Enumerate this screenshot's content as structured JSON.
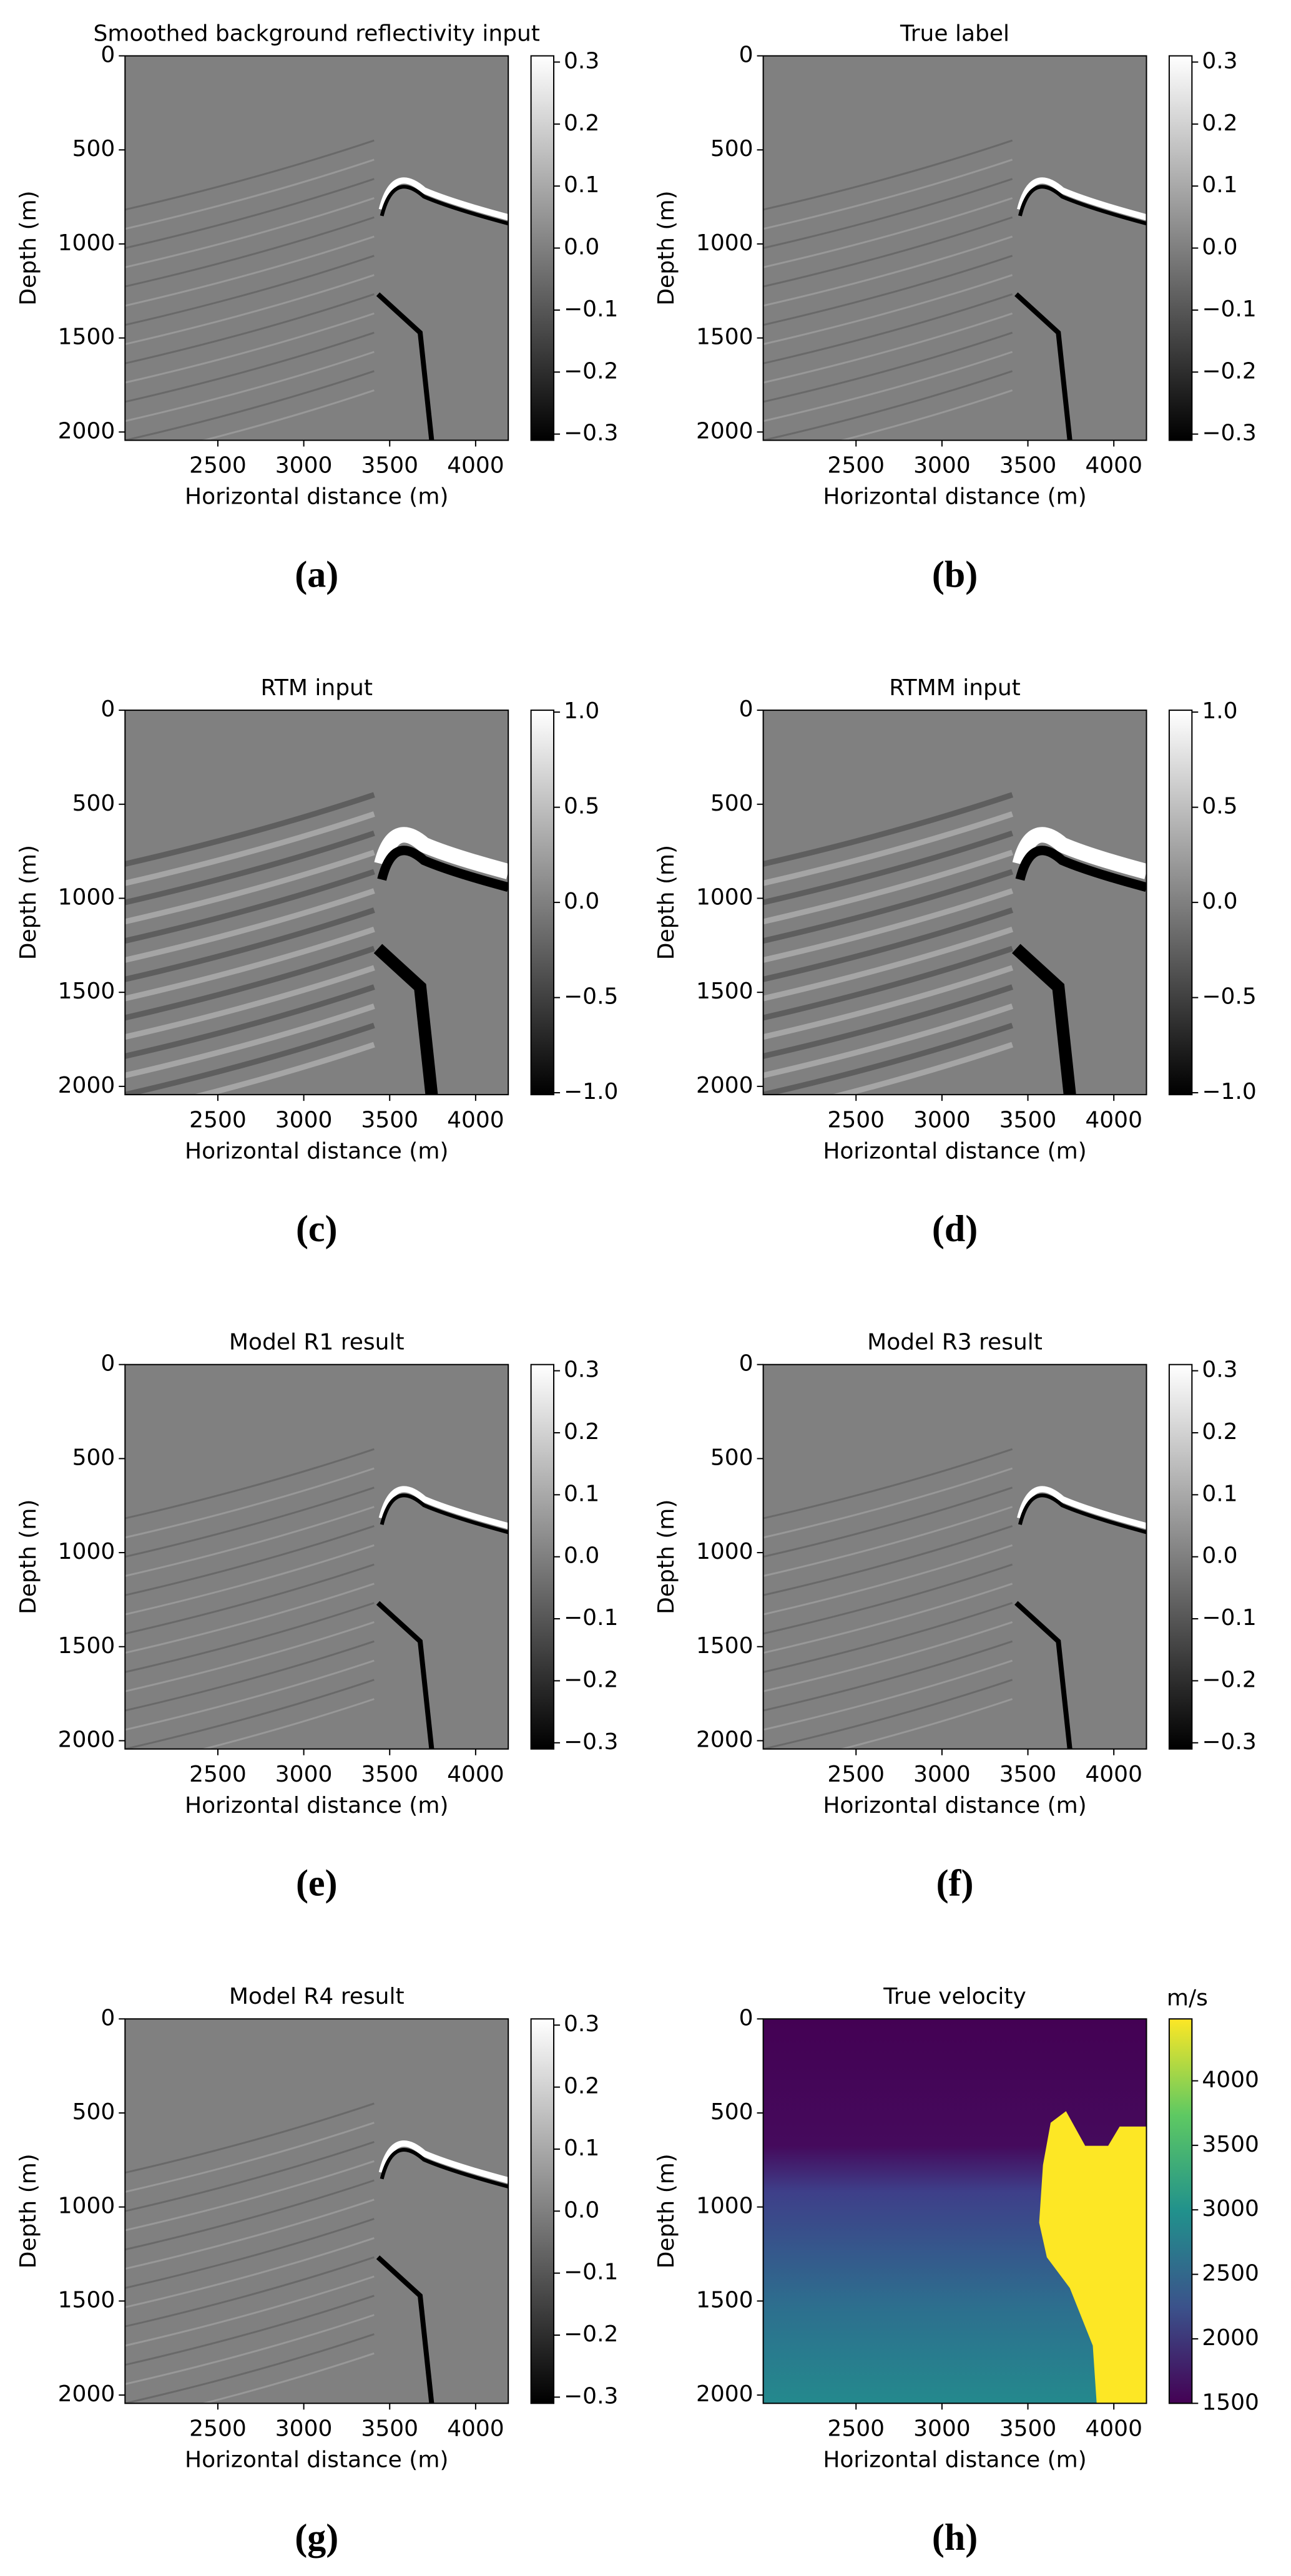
{
  "chart_data": [
    {
      "type": "image",
      "title": "Smoothed background reflectivity input",
      "xlabel": "Horizontal distance (m)",
      "ylabel": "Depth (m)",
      "xlim": [
        1960,
        4190
      ],
      "xticks": [
        2500,
        3000,
        3500,
        4000
      ],
      "ylim": [
        2044,
        0
      ],
      "yticks": [
        0,
        500,
        1000,
        1500,
        2000
      ],
      "cmap": "gray",
      "clim": [
        -0.31,
        0.31
      ],
      "cticks": [
        0.3,
        0.2,
        0.1,
        {
          "value": 0,
          "label": "0.0"
        },
        {
          "value": -0.1,
          "label": "−0.1"
        },
        {
          "value": -0.2,
          "label": "−0.2"
        },
        {
          "value": -0.3,
          "label": "−0.3"
        }
      ],
      "caption": "(a)"
    },
    {
      "type": "image",
      "title": "True label",
      "xlabel": "Horizontal distance (m)",
      "ylabel": "Depth (m)",
      "xlim": [
        1960,
        4190
      ],
      "xticks": [
        2500,
        3000,
        3500,
        4000
      ],
      "ylim": [
        2044,
        0
      ],
      "yticks": [
        0,
        500,
        1000,
        1500,
        2000
      ],
      "cmap": "gray",
      "clim": [
        -0.31,
        0.31
      ],
      "cticks": [
        0.3,
        0.2,
        0.1,
        {
          "value": 0,
          "label": "0.0"
        },
        {
          "value": -0.1,
          "label": "−0.1"
        },
        {
          "value": -0.2,
          "label": "−0.2"
        },
        {
          "value": -0.3,
          "label": "−0.3"
        }
      ],
      "caption": "(b)"
    },
    {
      "type": "image",
      "title": "RTM input",
      "xlabel": "Horizontal distance (m)",
      "ylabel": "Depth (m)",
      "xlim": [
        1960,
        4190
      ],
      "xticks": [
        2500,
        3000,
        3500,
        4000
      ],
      "ylim": [
        2044,
        0
      ],
      "yticks": [
        0,
        500,
        1000,
        1500,
        2000
      ],
      "cmap": "gray",
      "clim": [
        -1.01,
        1.01
      ],
      "cticks": [
        {
          "value": 1,
          "label": "1.0"
        },
        0.5,
        {
          "value": 0,
          "label": "0.0"
        },
        {
          "value": -0.5,
          "label": "−0.5"
        },
        {
          "value": -1,
          "label": "−1.0"
        }
      ],
      "caption": "(c)"
    },
    {
      "type": "image",
      "title": "RTMM input",
      "xlabel": "Horizontal distance (m)",
      "ylabel": "Depth (m)",
      "xlim": [
        1960,
        4190
      ],
      "xticks": [
        2500,
        3000,
        3500,
        4000
      ],
      "ylim": [
        2044,
        0
      ],
      "yticks": [
        0,
        500,
        1000,
        1500,
        2000
      ],
      "cmap": "gray",
      "clim": [
        -1.01,
        1.01
      ],
      "cticks": [
        {
          "value": 1,
          "label": "1.0"
        },
        0.5,
        {
          "value": 0,
          "label": "0.0"
        },
        {
          "value": -0.5,
          "label": "−0.5"
        },
        {
          "value": -1,
          "label": "−1.0"
        }
      ],
      "caption": "(d)"
    },
    {
      "type": "image",
      "title": "Model R1 result",
      "xlabel": "Horizontal distance (m)",
      "ylabel": "Depth (m)",
      "xlim": [
        1960,
        4190
      ],
      "xticks": [
        2500,
        3000,
        3500,
        4000
      ],
      "ylim": [
        2044,
        0
      ],
      "yticks": [
        0,
        500,
        1000,
        1500,
        2000
      ],
      "cmap": "gray",
      "clim": [
        -0.31,
        0.31
      ],
      "cticks": [
        0.3,
        0.2,
        0.1,
        {
          "value": 0,
          "label": "0.0"
        },
        {
          "value": -0.1,
          "label": "−0.1"
        },
        {
          "value": -0.2,
          "label": "−0.2"
        },
        {
          "value": -0.3,
          "label": "−0.3"
        }
      ],
      "caption": "(e)"
    },
    {
      "type": "image",
      "title": "Model R3 result",
      "xlabel": "Horizontal distance (m)",
      "ylabel": "Depth (m)",
      "xlim": [
        1960,
        4190
      ],
      "xticks": [
        2500,
        3000,
        3500,
        4000
      ],
      "ylim": [
        2044,
        0
      ],
      "yticks": [
        0,
        500,
        1000,
        1500,
        2000
      ],
      "cmap": "gray",
      "clim": [
        -0.31,
        0.31
      ],
      "cticks": [
        0.3,
        0.2,
        0.1,
        {
          "value": 0,
          "label": "0.0"
        },
        {
          "value": -0.1,
          "label": "−0.1"
        },
        {
          "value": -0.2,
          "label": "−0.2"
        },
        {
          "value": -0.3,
          "label": "−0.3"
        }
      ],
      "caption": "(f)"
    },
    {
      "type": "image",
      "title": "Model R4 result",
      "xlabel": "Horizontal distance (m)",
      "ylabel": "Depth (m)",
      "xlim": [
        1960,
        4190
      ],
      "xticks": [
        2500,
        3000,
        3500,
        4000
      ],
      "ylim": [
        2044,
        0
      ],
      "yticks": [
        0,
        500,
        1000,
        1500,
        2000
      ],
      "cmap": "gray",
      "clim": [
        -0.31,
        0.31
      ],
      "cticks": [
        0.3,
        0.2,
        0.1,
        {
          "value": 0,
          "label": "0.0"
        },
        {
          "value": -0.1,
          "label": "−0.1"
        },
        {
          "value": -0.2,
          "label": "−0.2"
        },
        {
          "value": -0.3,
          "label": "−0.3"
        }
      ],
      "caption": "(g)"
    },
    {
      "type": "image",
      "title": "True velocity",
      "xlabel": "Horizontal distance (m)",
      "ylabel": "Depth (m)",
      "xlim": [
        1960,
        4190
      ],
      "xticks": [
        2500,
        3000,
        3500,
        4000
      ],
      "ylim": [
        2044,
        0
      ],
      "yticks": [
        0,
        500,
        1000,
        1500,
        2000
      ],
      "cmap": "viridis",
      "clim": [
        1500,
        4480
      ],
      "cticks": [
        4000,
        3500,
        3000,
        2500,
        2000,
        1500
      ],
      "clabel": "m/s",
      "caption": "(h)"
    }
  ]
}
